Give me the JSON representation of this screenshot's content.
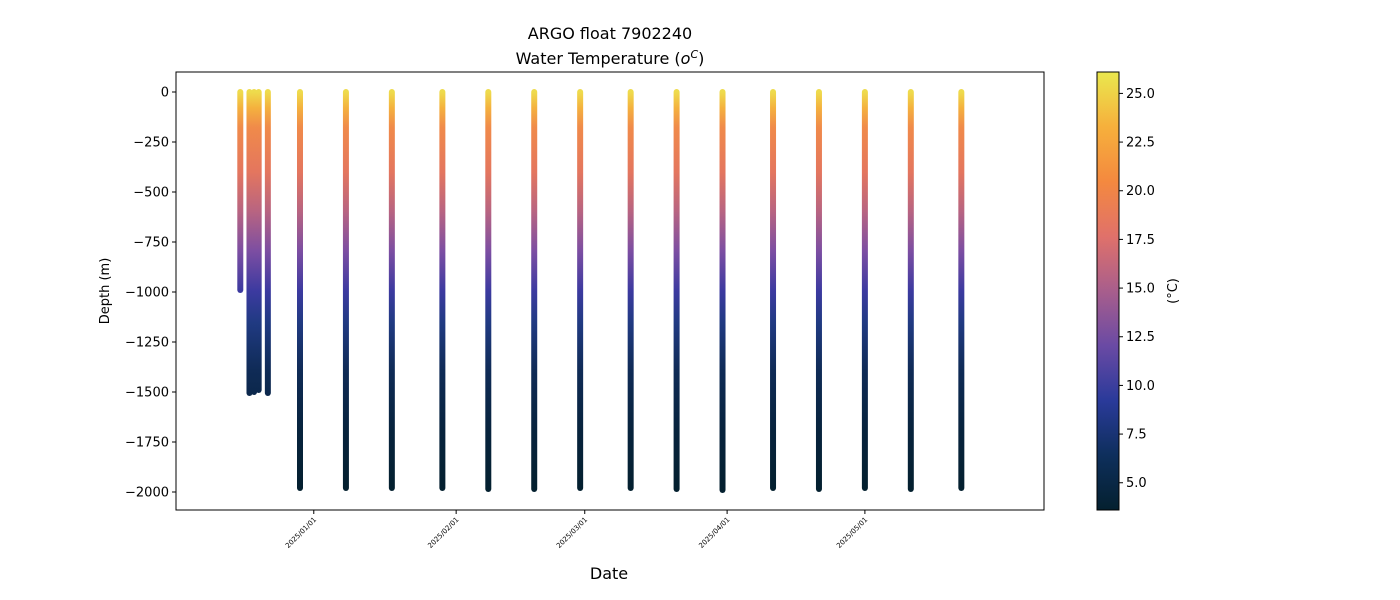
{
  "chart_data": {
    "type": "scatter",
    "title": "ARGO float 7902240",
    "subtitle_prefix": "Water Temperature (",
    "subtitle_unit_base": "o",
    "subtitle_unit_sup": "C",
    "subtitle_suffix": ")",
    "xlabel": "Date",
    "ylabel": "Depth (m)",
    "colorbar_label": "(°C)",
    "ylim": [
      -2090,
      100
    ],
    "y_ticks": [
      0,
      -250,
      -500,
      -750,
      -1000,
      -1250,
      -1500,
      -1750,
      -2000
    ],
    "y_tick_labels": [
      "0",
      "−250",
      "−500",
      "−750",
      "−1000",
      "−1250",
      "−1500",
      "−1750",
      "−2000"
    ],
    "xlim": [
      "2024-12-02",
      "2025-06-09"
    ],
    "x_ticks": [
      "2025-01-01",
      "2025-02-01",
      "2025-03-01",
      "2025-04-01",
      "2025-05-01"
    ],
    "x_tick_labels": [
      "2025/01/01",
      "2025/02/01",
      "2025/03/01",
      "2025/04/01",
      "2025/05/01"
    ],
    "colorbar": {
      "range": [
        3.6,
        26.1
      ],
      "ticks": [
        5.0,
        7.5,
        10.0,
        12.5,
        15.0,
        17.5,
        20.0,
        22.5,
        25.0
      ],
      "tick_labels": [
        "5.0",
        "7.5",
        "10.0",
        "12.5",
        "15.0",
        "17.5",
        "20.0",
        "22.5",
        "25.0"
      ],
      "colormap": "thermal",
      "stops": [
        "#04202f",
        "#0e2f5c",
        "#2a3a9a",
        "#6a4aa4",
        "#a85e8c",
        "#e0716a",
        "#f4893f",
        "#f6b03c",
        "#eae84e"
      ]
    },
    "profiles": [
      {
        "date": "2024-12-16",
        "max_depth": -990,
        "surface_temp": 24.5
      },
      {
        "date": "2024-12-18",
        "max_depth": -1505,
        "surface_temp": 24.8
      },
      {
        "date": "2024-12-19",
        "max_depth": -1500,
        "surface_temp": 24.8
      },
      {
        "date": "2024-12-20",
        "max_depth": -1490,
        "surface_temp": 24.6
      },
      {
        "date": "2024-12-22",
        "max_depth": -1505,
        "surface_temp": 24.6
      },
      {
        "date": "2024-12-29",
        "max_depth": -1980,
        "surface_temp": 24.4
      },
      {
        "date": "2025-01-08",
        "max_depth": -1980,
        "surface_temp": 24.4
      },
      {
        "date": "2025-01-18",
        "max_depth": -1980,
        "surface_temp": 24.3
      },
      {
        "date": "2025-01-29",
        "max_depth": -1980,
        "surface_temp": 24.3
      },
      {
        "date": "2025-02-08",
        "max_depth": -1985,
        "surface_temp": 24.3
      },
      {
        "date": "2025-02-18",
        "max_depth": -1985,
        "surface_temp": 24.2
      },
      {
        "date": "2025-02-28",
        "max_depth": -1980,
        "surface_temp": 24.2
      },
      {
        "date": "2025-03-11",
        "max_depth": -1980,
        "surface_temp": 24.6
      },
      {
        "date": "2025-03-21",
        "max_depth": -1985,
        "surface_temp": 20.5
      },
      {
        "date": "2025-03-31",
        "max_depth": -1990,
        "surface_temp": 24.6
      },
      {
        "date": "2025-04-11",
        "max_depth": -1980,
        "surface_temp": 24.4
      },
      {
        "date": "2025-04-21",
        "max_depth": -1985,
        "surface_temp": 24.4
      },
      {
        "date": "2025-05-01",
        "max_depth": -1980,
        "surface_temp": 24.4
      },
      {
        "date": "2025-05-11",
        "max_depth": -1985,
        "surface_temp": 20.5
      },
      {
        "date": "2025-05-22",
        "max_depth": -1980,
        "surface_temp": 24.4
      }
    ]
  }
}
